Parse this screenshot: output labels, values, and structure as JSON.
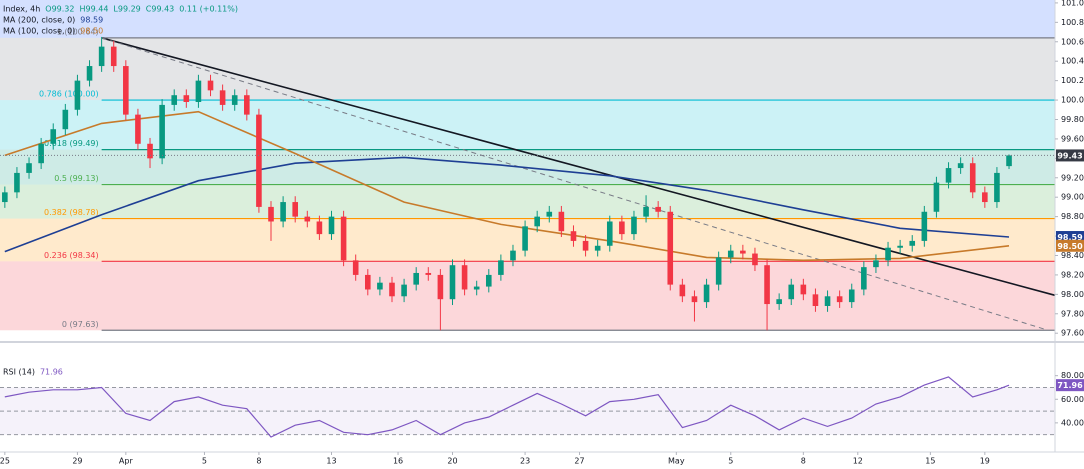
{
  "chart_data": [
    {
      "type": "candlestick",
      "title": "Index, 4h",
      "ohlc_labels": [
        "O99.32",
        "H99.44",
        "L99.29",
        "C99.43",
        "0.11 (+0.11%)"
      ],
      "x": [
        0,
        1,
        2,
        3,
        4,
        5,
        6,
        7,
        8,
        9,
        10,
        11,
        12,
        13,
        14,
        15,
        16,
        17,
        18,
        19,
        20,
        21,
        22,
        23,
        24,
        25,
        26,
        27,
        28,
        29,
        30,
        31,
        32,
        33,
        34,
        35,
        36,
        37,
        38,
        39,
        40,
        41,
        42,
        43,
        44,
        45,
        46,
        47,
        48,
        49,
        50,
        51,
        52,
        53,
        54,
        55,
        56,
        57,
        58,
        59,
        60,
        61,
        62,
        63,
        64,
        65,
        66,
        67,
        68,
        69,
        70,
        71,
        72,
        73,
        74,
        75,
        76,
        77,
        78,
        79,
        80,
        81,
        82,
        83
      ],
      "open": [
        98.95,
        99.05,
        99.25,
        99.35,
        99.55,
        99.7,
        99.9,
        100.2,
        100.35,
        100.55,
        100.35,
        99.85,
        99.55,
        99.4,
        99.95,
        100.05,
        99.98,
        100.2,
        100.1,
        99.95,
        100.05,
        99.85,
        98.9,
        98.75,
        98.95,
        98.8,
        98.75,
        98.62,
        98.8,
        98.35,
        98.2,
        98.05,
        98.12,
        97.98,
        98.1,
        98.22,
        98.2,
        97.95,
        98.3,
        98.05,
        98.08,
        98.2,
        98.35,
        98.45,
        98.7,
        98.8,
        98.85,
        98.65,
        98.55,
        98.45,
        98.5,
        98.75,
        98.62,
        98.8,
        98.9,
        98.85,
        98.1,
        97.98,
        97.92,
        98.1,
        98.38,
        98.45,
        98.42,
        98.3,
        97.9,
        97.95,
        98.1,
        98.0,
        97.88,
        97.98,
        97.92,
        98.05,
        98.28,
        98.35,
        98.48,
        98.5,
        98.55,
        98.85,
        99.15,
        99.3,
        99.35,
        99.05,
        98.95,
        99.32
      ],
      "high": [
        99.11,
        99.31,
        99.41,
        99.61,
        99.76,
        99.96,
        100.26,
        100.41,
        100.65,
        100.61,
        100.41,
        99.91,
        99.61,
        100.01,
        100.11,
        100.11,
        100.26,
        100.26,
        100.16,
        100.11,
        100.11,
        99.91,
        98.96,
        99.01,
        99.01,
        98.86,
        98.81,
        98.86,
        98.86,
        98.41,
        98.26,
        98.18,
        98.18,
        98.16,
        98.28,
        98.28,
        98.26,
        98.36,
        98.36,
        98.14,
        98.26,
        98.41,
        98.51,
        98.76,
        98.86,
        98.91,
        98.91,
        98.71,
        98.61,
        98.56,
        98.81,
        98.81,
        98.86,
        99.02,
        98.96,
        98.91,
        98.16,
        98.04,
        98.16,
        98.44,
        98.51,
        98.51,
        98.48,
        98.36,
        98.01,
        98.16,
        98.16,
        98.06,
        98.04,
        98.04,
        98.11,
        98.34,
        98.41,
        98.54,
        98.56,
        98.61,
        98.91,
        99.21,
        99.36,
        99.41,
        99.41,
        99.11,
        99.31,
        99.44
      ],
      "low": [
        98.89,
        98.99,
        99.19,
        99.29,
        99.49,
        99.64,
        99.84,
        100.14,
        100.29,
        100.29,
        99.79,
        99.49,
        99.3,
        99.34,
        99.89,
        99.92,
        99.92,
        100.04,
        99.89,
        99.89,
        99.79,
        98.84,
        98.55,
        98.69,
        98.74,
        98.69,
        98.56,
        98.56,
        98.29,
        98.14,
        97.99,
        97.99,
        97.92,
        97.92,
        98.04,
        98.14,
        97.63,
        97.89,
        97.99,
        97.99,
        98.02,
        98.14,
        98.29,
        98.39,
        98.64,
        98.74,
        98.59,
        98.49,
        98.39,
        98.39,
        98.44,
        98.56,
        98.56,
        98.74,
        98.79,
        98.04,
        97.92,
        97.72,
        97.86,
        98.04,
        98.32,
        98.36,
        98.24,
        97.63,
        97.84,
        97.89,
        97.94,
        97.82,
        97.82,
        97.86,
        97.86,
        97.99,
        98.22,
        98.29,
        98.42,
        98.44,
        98.49,
        98.79,
        99.09,
        99.24,
        98.99,
        98.89,
        98.89,
        99.29
      ],
      "close": [
        99.05,
        99.25,
        99.35,
        99.55,
        99.7,
        99.9,
        100.2,
        100.35,
        100.55,
        100.35,
        99.85,
        99.55,
        99.4,
        99.95,
        100.05,
        99.98,
        100.2,
        100.1,
        99.95,
        100.05,
        99.85,
        98.9,
        98.75,
        98.95,
        98.8,
        98.75,
        98.62,
        98.8,
        98.35,
        98.2,
        98.05,
        98.12,
        97.98,
        98.1,
        98.22,
        98.2,
        97.95,
        98.3,
        98.05,
        98.08,
        98.2,
        98.35,
        98.45,
        98.7,
        98.8,
        98.85,
        98.65,
        98.55,
        98.45,
        98.5,
        98.75,
        98.62,
        98.8,
        98.9,
        98.85,
        98.1,
        97.98,
        97.92,
        98.1,
        98.38,
        98.45,
        98.42,
        98.3,
        97.9,
        97.95,
        98.1,
        98.0,
        97.88,
        97.98,
        97.92,
        98.05,
        98.28,
        98.35,
        98.48,
        98.5,
        98.55,
        98.85,
        99.15,
        99.3,
        99.35,
        99.05,
        98.95,
        99.25,
        99.43
      ],
      "last_label": "99.43",
      "up_color": "#089981",
      "down_color": "#f23645",
      "xlim": [
        -0.4,
        86.8
      ],
      "ylim": [
        97.53,
        101.03
      ],
      "yticks": [
        {
          "value": 97.6,
          "label": "97.60"
        },
        {
          "value": 97.8,
          "label": "97.80"
        },
        {
          "value": 98,
          "label": "98.00"
        },
        {
          "value": 98.2,
          "label": "98.20"
        },
        {
          "value": 98.4,
          "label": "98.40"
        },
        {
          "value": 98.6,
          "label": "98.60"
        },
        {
          "value": 98.8,
          "label": "98.80"
        },
        {
          "value": 99,
          "label": "99.00"
        },
        {
          "value": 99.2,
          "label": "99.20"
        },
        {
          "value": 99.4,
          "label": "99.40"
        },
        {
          "value": 99.6,
          "label": "99.60"
        },
        {
          "value": 99.8,
          "label": "99.80"
        },
        {
          "value": 100,
          "label": "100.00"
        },
        {
          "value": 100.2,
          "label": "100.20"
        },
        {
          "value": 100.4,
          "label": "100.40"
        },
        {
          "value": 100.6,
          "label": "100.60"
        },
        {
          "value": 100.8,
          "label": "100.80"
        },
        {
          "value": 101,
          "label": "101.00"
        }
      ],
      "fib_start": 8,
      "above_color": "#2962ff",
      "fib_levels": [
        {
          "label": "0 (97.63)",
          "value": 97.63,
          "color": "#787b86"
        },
        {
          "label": "0.236 (98.34)",
          "value": 98.34,
          "color": "#f23645"
        },
        {
          "label": "0.382 (98.78)",
          "value": 98.78,
          "color": "#ff9800"
        },
        {
          "label": "0.5 (99.13)",
          "value": 99.13,
          "color": "#4caf50"
        },
        {
          "label": "0.618 (99.49)",
          "value": 99.49,
          "color": "#089981"
        },
        {
          "label": "0.786 (100.00)",
          "value": 100.0,
          "color": "#00bcd4"
        },
        {
          "label": "1 (100.64)",
          "value": 100.64,
          "color": "#787b86"
        }
      ],
      "overlays": [
        {
          "name": "MA (200, close, 0)",
          "color": "#1e3f94",
          "x": [
            0,
            8,
            16,
            24,
            33,
            41,
            50,
            58,
            66,
            74,
            83
          ],
          "values": [
            98.44,
            98.82,
            99.17,
            99.35,
            99.41,
            99.33,
            99.22,
            99.07,
            98.87,
            98.68,
            98.59
          ],
          "last_label": "98.59"
        },
        {
          "name": "MA (100, close, 0)",
          "color": "#c77a2a",
          "x": [
            0,
            8,
            16,
            24,
            33,
            41,
            50,
            58,
            66,
            74,
            83
          ],
          "values": [
            99.43,
            99.76,
            99.88,
            99.45,
            98.95,
            98.72,
            98.55,
            98.38,
            98.35,
            98.37,
            98.5
          ],
          "last_label": "98.50"
        }
      ],
      "trendlines": [
        {
          "x": [
            8,
            86.8
          ],
          "values": [
            100.64,
            97.99
          ],
          "color": "#131722",
          "dash": false
        },
        {
          "x": [
            8,
            85.97
          ],
          "values": [
            100.64,
            97.64
          ],
          "color": "#787b86",
          "dash": true
        }
      ]
    },
    {
      "type": "line",
      "title": "RSI (14)",
      "x": [
        0,
        2,
        4,
        6,
        8,
        10,
        12,
        14,
        16,
        18,
        20,
        22,
        24,
        26,
        28,
        30,
        32,
        34,
        36,
        38,
        40,
        42,
        44,
        46,
        48,
        50,
        52,
        54,
        56,
        58,
        60,
        62,
        64,
        66,
        68,
        70,
        72,
        74,
        76,
        78,
        80,
        82,
        83
      ],
      "values": [
        62,
        66,
        68,
        68,
        70,
        48,
        42,
        58,
        62,
        55,
        52,
        28,
        38,
        42,
        32,
        30,
        34,
        42,
        30,
        40,
        45,
        55,
        65,
        56,
        46,
        58,
        60,
        64,
        36,
        42,
        55,
        46,
        34,
        44,
        37,
        44,
        56,
        62,
        72,
        79,
        62,
        68,
        71.96
      ],
      "last_label": "71.96",
      "color": "#7e57c2",
      "xlim": [
        -0.4,
        86.8
      ],
      "ylim": [
        17,
        106
      ],
      "yticks": [
        {
          "value": 40,
          "label": "40.00"
        },
        {
          "value": 60,
          "label": "60.00"
        },
        {
          "value": 80,
          "label": "80.00"
        }
      ],
      "hlines": [
        70,
        50,
        30
      ],
      "xticks": [
        {
          "value": 0,
          "label": "25"
        },
        {
          "value": 6,
          "label": "29"
        },
        {
          "value": 10,
          "label": "Apr"
        },
        {
          "value": 16.5,
          "label": "5"
        },
        {
          "value": 21,
          "label": "8"
        },
        {
          "value": 27,
          "label": "13"
        },
        {
          "value": 32.5,
          "label": "16"
        },
        {
          "value": 37,
          "label": "20"
        },
        {
          "value": 43,
          "label": "23"
        },
        {
          "value": 47.5,
          "label": "27"
        },
        {
          "value": 55.5,
          "label": "May"
        },
        {
          "value": 60,
          "label": "5"
        },
        {
          "value": 66,
          "label": "8"
        },
        {
          "value": 70.5,
          "label": "12"
        },
        {
          "value": 76.5,
          "label": "15"
        },
        {
          "value": 81,
          "label": "19"
        }
      ]
    }
  ]
}
